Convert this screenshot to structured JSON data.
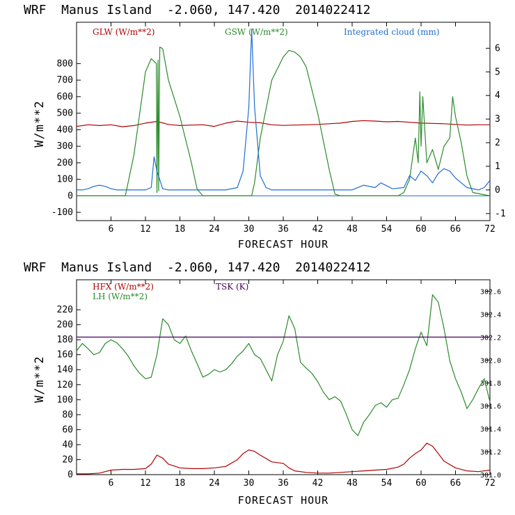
{
  "chart_data": [
    {
      "type": "line",
      "title": "WRF  Manus Island  -2.060, 147.420  2014022412",
      "xlabel": "FORECAST HOUR",
      "ylabel": "W/m**2",
      "xlim": [
        0,
        72
      ],
      "ylim": [
        -150,
        1050
      ],
      "xticks": [
        6,
        12,
        18,
        24,
        30,
        36,
        42,
        48,
        54,
        60,
        66,
        72
      ],
      "yticks": [
        -100,
        0,
        100,
        200,
        300,
        400,
        500,
        600,
        700,
        800
      ],
      "y2lim": [
        -1.3,
        7.1
      ],
      "y2ticks": [
        -1,
        0,
        1,
        2,
        3,
        4,
        5,
        6
      ],
      "series": [
        {
          "name": "GLW (W/m**2)",
          "axis": "left",
          "color": "#b00000",
          "x": [
            0,
            2,
            4,
            6,
            8,
            10,
            12,
            14,
            16,
            18,
            20,
            22,
            24,
            26,
            28,
            30,
            32,
            34,
            36,
            38,
            40,
            42,
            44,
            46,
            48,
            50,
            52,
            54,
            56,
            58,
            60,
            62,
            64,
            66,
            68,
            70,
            72
          ],
          "values": [
            420,
            430,
            425,
            430,
            418,
            425,
            440,
            450,
            432,
            425,
            428,
            430,
            420,
            440,
            452,
            445,
            442,
            430,
            426,
            428,
            430,
            432,
            436,
            440,
            450,
            455,
            452,
            448,
            450,
            445,
            440,
            438,
            436,
            432,
            428,
            430,
            430
          ]
        },
        {
          "name": "GSW (W/m**2)",
          "axis": "left",
          "color": "#2a8a2a",
          "x": [
            0,
            6,
            8.5,
            10,
            11,
            12,
            13,
            13.9,
            14.0,
            14.2,
            14.3,
            14.5,
            15,
            16,
            18,
            20,
            21,
            22,
            26,
            30,
            30.5,
            31,
            32,
            34,
            36,
            37,
            38,
            39,
            40,
            42,
            44,
            45,
            46,
            56,
            57,
            58,
            59,
            59.5,
            59.8,
            60,
            60.3,
            61,
            62,
            63,
            64,
            65,
            65.5,
            66,
            67,
            68,
            69,
            72
          ],
          "values": [
            0,
            0,
            0,
            250,
            500,
            750,
            830,
            800,
            20,
            820,
            30,
            900,
            890,
            700,
            480,
            200,
            40,
            0,
            0,
            0,
            0,
            80,
            350,
            700,
            840,
            880,
            870,
            840,
            780,
            500,
            160,
            10,
            0,
            0,
            20,
            100,
            350,
            200,
            630,
            300,
            600,
            200,
            280,
            160,
            300,
            350,
            600,
            480,
            320,
            120,
            20,
            0
          ]
        },
        {
          "name": "Integrated cloud (mm)",
          "axis": "right",
          "color": "#1e6ed2",
          "x": [
            0,
            1,
            2,
            3,
            4,
            5,
            6,
            7,
            8,
            12,
            13,
            13.5,
            14,
            15,
            16,
            24,
            26,
            28,
            29,
            30,
            30.5,
            31,
            32,
            33,
            34,
            40,
            48,
            50,
            52,
            53,
            55,
            57,
            58,
            59,
            60,
            61,
            62,
            63,
            64,
            65,
            66,
            67,
            68,
            70,
            71,
            72
          ],
          "values": [
            0,
            0,
            0.05,
            0.15,
            0.2,
            0.15,
            0.05,
            0,
            0,
            0,
            0.1,
            1.4,
            0.8,
            0.05,
            0,
            0,
            0,
            0.1,
            0.8,
            3.5,
            6.8,
            3.5,
            0.6,
            0.1,
            0,
            0,
            0,
            0.2,
            0.1,
            0.3,
            0.05,
            0.1,
            0.6,
            0.4,
            0.8,
            0.6,
            0.3,
            0.7,
            0.9,
            0.8,
            0.5,
            0.3,
            0.1,
            0,
            0.1,
            0.4
          ]
        }
      ]
    },
    {
      "type": "line",
      "title": "WRF  Manus Island  -2.060, 147.420  2014022412",
      "xlabel": "FORECAST HOUR",
      "ylabel": "W/m**2",
      "xlim": [
        0,
        72
      ],
      "ylim": [
        0,
        260
      ],
      "xticks": [
        6,
        12,
        18,
        24,
        30,
        36,
        42,
        48,
        54,
        60,
        66,
        72
      ],
      "yticks": [
        0,
        20,
        40,
        60,
        80,
        100,
        120,
        140,
        160,
        180,
        200,
        220
      ],
      "y2lim": [
        301.0,
        302.7
      ],
      "y2ticks": [
        301.0,
        301.2,
        301.4,
        301.6,
        301.8,
        302.0,
        302.2,
        302.4,
        302.6
      ],
      "y2ticklabels": [
        "301.0",
        "301.2",
        "301.4",
        "301.6",
        "301.8",
        "302.0",
        "302.2",
        "302.4",
        "302.6"
      ],
      "series": [
        {
          "name": "HFX (W/m**2)",
          "axis": "left",
          "color": "#b00000",
          "x": [
            0,
            2,
            4,
            6,
            8,
            10,
            12,
            13,
            14,
            15,
            16,
            18,
            20,
            22,
            24,
            26,
            28,
            29,
            30,
            31,
            32,
            34,
            35,
            36,
            37,
            38,
            40,
            42,
            44,
            46,
            48,
            50,
            52,
            54,
            56,
            57,
            58,
            59,
            60,
            61,
            62,
            63,
            64,
            66,
            68,
            70,
            72
          ],
          "values": [
            1,
            1,
            2,
            6,
            7,
            7,
            8,
            14,
            26,
            22,
            14,
            9,
            8,
            8,
            9,
            11,
            20,
            28,
            33,
            31,
            26,
            17,
            16,
            15,
            9,
            5,
            3,
            2,
            2,
            3,
            4,
            5,
            6,
            7,
            10,
            14,
            22,
            28,
            33,
            42,
            38,
            28,
            18,
            9,
            5,
            4,
            6
          ]
        },
        {
          "name": "LH (W/m**2)",
          "axis": "left",
          "color": "#2a8a2a",
          "x": [
            0,
            1,
            2,
            3,
            4,
            5,
            6,
            7,
            8,
            9,
            10,
            11,
            12,
            13,
            14,
            15,
            16,
            17,
            18,
            19,
            20,
            21,
            22,
            23,
            24,
            25,
            26,
            27,
            28,
            29,
            30,
            31,
            32,
            33,
            34,
            35,
            36,
            37,
            38,
            39,
            40,
            41,
            42,
            43,
            44,
            45,
            46,
            47,
            48,
            49,
            50,
            51,
            52,
            53,
            54,
            55,
            56,
            57,
            58,
            59,
            60,
            61,
            62,
            63,
            64,
            65,
            66,
            67,
            68,
            69,
            70,
            71,
            72
          ],
          "values": [
            165,
            175,
            168,
            160,
            163,
            175,
            180,
            176,
            168,
            158,
            145,
            135,
            128,
            130,
            160,
            208,
            200,
            180,
            175,
            185,
            165,
            148,
            130,
            134,
            140,
            137,
            140,
            148,
            158,
            165,
            175,
            160,
            155,
            140,
            125,
            160,
            178,
            212,
            195,
            150,
            142,
            135,
            124,
            110,
            100,
            104,
            98,
            80,
            60,
            52,
            70,
            80,
            92,
            96,
            90,
            100,
            102,
            120,
            140,
            168,
            190,
            172,
            240,
            230,
            195,
            152,
            128,
            110,
            88,
            100,
            115,
            128,
            97
          ]
        },
        {
          "name": "TSK (K)",
          "axis": "right",
          "color": "#4a0060",
          "x": [
            0,
            72
          ],
          "values": [
            302.2,
            302.2
          ]
        }
      ]
    }
  ]
}
